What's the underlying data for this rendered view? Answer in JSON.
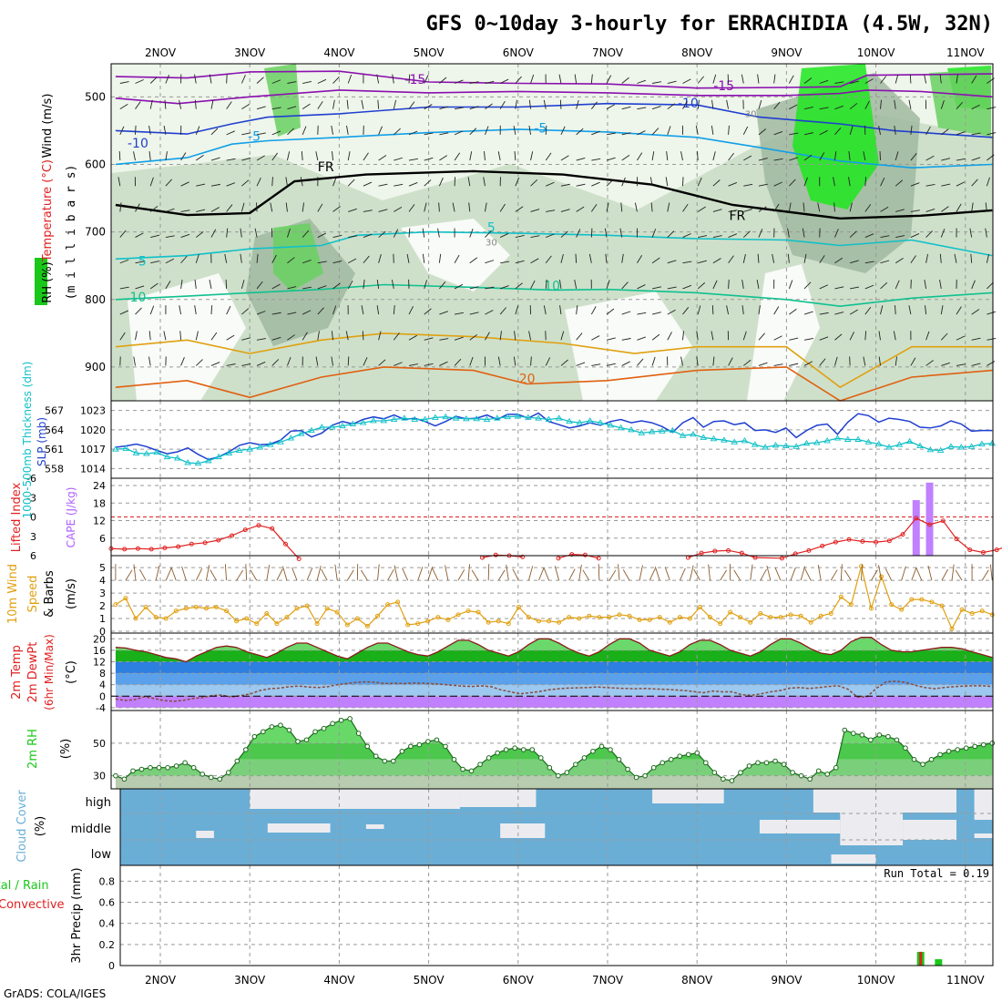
{
  "chart_data": {
    "type": "meteogram",
    "title": "GFS 0~10day 3-hourly for ERRACHIDIA (4.5W, 32N)",
    "footer": "GrADS: COLA/IGES",
    "days": [
      "2NOV",
      "3NOV",
      "4NOV",
      "5NOV",
      "6NOV",
      "7NOV",
      "8NOV",
      "9NOV",
      "10NOV",
      "11NOV"
    ],
    "colors": {
      "purple": "#8a10b0",
      "blue": "#1f3fd0",
      "cyan_blue": "#10a0e8",
      "teal": "#10c0c8",
      "green_teal": "#10c090",
      "orange": "#e0a010",
      "dark_orange": "#e06010",
      "red": "#e02020",
      "rh_green": "#19c819",
      "cloud_blue": "#6aaed6",
      "cloud_white": "#f4f0f8",
      "cape_violet": "#c080ff"
    },
    "upper_air": {
      "ylabel_rh": "RH (%)",
      "ylabel_temp": "Temperature (°C)",
      "ylabel_wind": "Wind (m/s)",
      "ylabel_levels": "(m i l l i b a r s)",
      "levels": [
        500,
        600,
        700,
        800,
        900
      ],
      "isotherm_labels": [
        {
          "text": "-15",
          "day": 4.85,
          "level": 481,
          "color": "purple"
        },
        {
          "text": "-15",
          "day": 8.3,
          "level": 490,
          "color": "purple"
        },
        {
          "text": "-10",
          "day": 1.75,
          "level": 575,
          "color": "blue"
        },
        {
          "text": "-10",
          "day": 7.9,
          "level": 516,
          "color": "blue"
        },
        {
          "text": "-5",
          "day": 3.05,
          "level": 565,
          "color": "cyan_blue"
        },
        {
          "text": "-5",
          "day": 6.25,
          "level": 553,
          "color": "cyan_blue"
        },
        {
          "text": "5",
          "day": 1.8,
          "level": 750,
          "color": "teal"
        },
        {
          "text": "5",
          "day": 5.7,
          "level": 700,
          "color": "teal"
        },
        {
          "text": "10",
          "day": 1.75,
          "level": 803,
          "color": "green_teal"
        },
        {
          "text": "10",
          "day": 6.38,
          "level": 786,
          "color": "green_teal"
        },
        {
          "text": "20",
          "day": 6.1,
          "level": 924,
          "color": "dark_orange"
        },
        {
          "text": "FR",
          "day": 3.85,
          "level": 610,
          "color": "black"
        },
        {
          "text": "FR",
          "day": 8.45,
          "level": 682,
          "color": "black"
        },
        {
          "text": "30",
          "day": 8.6,
          "level": 530,
          "color": "gray"
        },
        {
          "text": "30",
          "day": 5.7,
          "level": 720,
          "color": "gray"
        }
      ]
    },
    "pressure_thickness": {
      "ylabel_thickness": "1000-500mb Thickness (dm)",
      "ylabel_slp": "SLP (mb)",
      "thickness_ticks": [
        558,
        561,
        564,
        567
      ],
      "slp_ticks": [
        1014,
        1017,
        1020,
        1023
      ],
      "slp": [
        1017.3,
        1017.5,
        1017.8,
        1017.4,
        1016.8,
        1016.3,
        1016.6,
        1017.2,
        1016.2,
        1015.4,
        1015.8,
        1016.6,
        1017.6,
        1018.0,
        1017.7,
        1017.8,
        1018.4,
        1019.8,
        1019.9,
        1018.9,
        1019.5,
        1020.7,
        1021.3,
        1020.9,
        1021.6,
        1022.0,
        1021.7,
        1022.3,
        1021.6,
        1021.8,
        1021.3,
        1020.6,
        1021.3,
        1022.1,
        1021.7,
        1021.8,
        1022.3,
        1021.6,
        1022.4,
        1022.4,
        1021.8,
        1022.6,
        1021.3,
        1020.8,
        1020.3,
        1020.6,
        1021.1,
        1020.7,
        1021.3,
        1021.6,
        1021.1,
        1021.4,
        1021.1,
        1020.5,
        1019.6,
        1021.1,
        1021.9,
        1020.4,
        1021.3,
        1021.4,
        1020.8,
        1021.1,
        1019.9,
        1020.0,
        1019.6,
        1020.3,
        1018.8,
        1019.9,
        1020.7,
        1020.9,
        1019.3,
        1021.2,
        1022.5,
        1022.2,
        1021.2,
        1021.8,
        1021.6,
        1021.3,
        1020.4,
        1020.3,
        1020.6,
        1021.4,
        1020.9,
        1019.8,
        1019.9,
        1019.9
      ],
      "thickness": [
        561.0,
        561.1,
        560.4,
        560.3,
        560.5,
        559.8,
        559.6,
        558.9,
        558.8,
        559.2,
        559.8,
        560.4,
        560.8,
        561.0,
        561.3,
        561.7,
        562.1,
        562.7,
        563.4,
        563.9,
        564.4,
        564.4,
        564.6,
        564.9,
        565.1,
        565.4,
        565.4,
        565.6,
        565.8,
        565.6,
        565.6,
        565.9,
        566.0,
        565.8,
        565.7,
        565.7,
        565.6,
        565.8,
        566.0,
        566.1,
        565.9,
        565.8,
        565.6,
        565.8,
        565.3,
        565.1,
        565.4,
        565.1,
        564.7,
        564.3,
        564.0,
        563.5,
        563.7,
        563.8,
        563.9,
        563.1,
        563.3,
        562.8,
        562.6,
        562.4,
        562.1,
        562.3,
        561.7,
        561.3,
        561.6,
        561.5,
        561.4,
        561.9,
        562.0,
        562.3,
        562.7,
        562.5,
        562.5,
        562.1,
        561.8,
        561.3,
        561.7,
        562.2,
        561.5,
        560.9,
        560.8,
        561.4,
        561.3,
        561.4,
        561.8,
        561.9
      ]
    },
    "stability": {
      "ylabel_li": "Lifted Index",
      "ylabel_cape": "CAPE (J/kg)",
      "li_ticks": [
        "-6",
        "-3",
        "0",
        "3",
        "6"
      ],
      "cape_ticks": [
        6,
        12,
        18,
        24
      ],
      "cape_bars": [
        {
          "day": 9.45,
          "value": 19
        },
        {
          "day": 9.6,
          "value": 25
        }
      ],
      "li_points": [
        [
          0.45,
          4.9
        ],
        [
          0.6,
          5.0
        ],
        [
          0.75,
          4.9
        ],
        [
          0.9,
          5.0
        ],
        [
          1.05,
          4.8
        ],
        [
          1.2,
          4.6
        ],
        [
          1.35,
          4.2
        ],
        [
          1.5,
          4.0
        ],
        [
          1.65,
          3.6
        ],
        [
          1.8,
          2.9
        ],
        [
          1.95,
          2.0
        ],
        [
          2.1,
          1.3
        ],
        [
          2.25,
          1.8
        ],
        [
          2.4,
          4.2
        ],
        [
          2.55,
          6.5
        ],
        [
          4.6,
          6.3
        ],
        [
          4.75,
          5.9
        ],
        [
          4.9,
          6.0
        ],
        [
          5.05,
          6.2
        ],
        [
          5.45,
          6.4
        ],
        [
          5.6,
          5.8
        ],
        [
          5.75,
          5.9
        ],
        [
          5.9,
          6.4
        ],
        [
          6.9,
          6.3
        ],
        [
          7.05,
          5.6
        ],
        [
          7.2,
          5.3
        ],
        [
          7.35,
          5.2
        ],
        [
          7.5,
          5.6
        ],
        [
          7.65,
          6.3
        ],
        [
          7.95,
          6.4
        ],
        [
          8.1,
          5.7
        ],
        [
          8.25,
          5.2
        ],
        [
          8.4,
          4.5
        ],
        [
          8.55,
          3.9
        ],
        [
          8.7,
          3.5
        ],
        [
          8.85,
          3.8
        ],
        [
          9.0,
          3.9
        ],
        [
          9.15,
          3.7
        ],
        [
          9.3,
          2.7
        ],
        [
          9.45,
          0.2
        ],
        [
          9.6,
          1.2
        ],
        [
          9.75,
          0.6
        ],
        [
          9.9,
          3.4
        ],
        [
          10.05,
          5.1
        ],
        [
          10.2,
          5.5
        ],
        [
          10.35,
          5.1
        ],
        [
          10.5,
          4.4
        ],
        [
          10.65,
          3.8
        ],
        [
          10.8,
          3.0
        ],
        [
          10.95,
          2.3
        ],
        [
          11.1,
          1.8
        ],
        [
          11.25,
          1.5
        ],
        [
          11.4,
          1.4
        ],
        [
          11.55,
          1.8
        ],
        [
          11.7,
          1.9
        ]
      ]
    },
    "surface_wind": {
      "ylabel_1": "10m Wind",
      "ylabel_2": "Speed",
      "ylabel_3": "& Barbs",
      "ylabel_unit": "(m/s)",
      "y_ticks": [
        0,
        1,
        2,
        3,
        4,
        5
      ],
      "speed": [
        2.1,
        2.6,
        1.0,
        1.9,
        1.1,
        1.0,
        1.6,
        1.8,
        1.9,
        1.8,
        1.9,
        1.6,
        0.8,
        1.0,
        0.6,
        1.4,
        0.6,
        1.1,
        1.8,
        2.0,
        0.6,
        1.8,
        1.5,
        0.5,
        1.0,
        0.4,
        1.2,
        2.1,
        2.3,
        0.5,
        0.6,
        0.8,
        1.1,
        0.9,
        1.3,
        1.6,
        1.5,
        0.7,
        0.8,
        0.6,
        1.9,
        1.1,
        0.8,
        0.8,
        0.7,
        1.1,
        1.0,
        1.2,
        1.1,
        1.1,
        1.3,
        1.2,
        0.9,
        0.9,
        1.1,
        0.7,
        1.1,
        1.0,
        1.9,
        1.1,
        0.6,
        1.5,
        1.1,
        0.7,
        1.4,
        1.1,
        1.1,
        1.3,
        1.2,
        0.7,
        1.2,
        1.4,
        2.7,
        2.1,
        5.1,
        1.8,
        4.3,
        2.1,
        1.7,
        2.5,
        2.5,
        2.3,
        2.0,
        0.2,
        1.7,
        1.4,
        1.6,
        1.3
      ]
    },
    "surface_temp": {
      "ylabel_1": "2m Temp",
      "ylabel_2": "2m DewPt",
      "ylabel_3": "(6hr Min/Max)",
      "ylabel_unit": "(°C)",
      "y_ticks": [
        -4,
        0,
        4,
        8,
        12,
        16,
        20
      ],
      "temp": [
        17,
        16.8,
        16.0,
        15.5,
        14.5,
        13.5,
        13,
        12,
        14,
        15.5,
        17,
        17.5,
        17,
        15.5,
        14.5,
        13.5,
        15,
        17,
        18.5,
        18.5,
        17,
        15.5,
        14,
        13,
        15,
        17,
        18.5,
        18.5,
        17,
        15.5,
        14.5,
        14,
        15.5,
        17.5,
        19.5,
        19.5,
        18,
        16,
        15,
        14,
        15.5,
        18,
        20,
        20,
        18.5,
        16.5,
        15,
        14,
        15.5,
        18,
        20,
        20,
        18.5,
        16,
        15,
        14,
        15.5,
        18,
        19.5,
        19.5,
        18,
        16,
        15,
        14,
        15.5,
        18,
        20,
        20,
        18.5,
        16.5,
        15,
        14.5,
        16,
        19,
        20.5,
        20.5,
        18,
        16,
        15.5,
        15.5,
        16,
        16.5,
        17,
        17,
        16.5,
        15.5,
        14.5,
        13.5
      ],
      "dew": [
        -1.0,
        -1.5,
        -1.2,
        -0.2,
        -0.8,
        -1.5,
        -1.8,
        -1.5,
        -0.8,
        -0.5,
        0.2,
        0.4,
        -0.3,
        0.2,
        0.8,
        2.0,
        2.6,
        2.8,
        3.3,
        3.5,
        3.2,
        3.0,
        3.3,
        4.0,
        4.4,
        4.8,
        5.0,
        4.8,
        4.4,
        4.5,
        4.4,
        4.6,
        4.5,
        4.3,
        4.1,
        3.8,
        3.5,
        3.4,
        3.6,
        3.3,
        2.2,
        1.5,
        0.8,
        1.2,
        1.6,
        2.2,
        2.6,
        2.8,
        2.9,
        3.0,
        3.2,
        3.0,
        2.8,
        2.7,
        2.6,
        2.7,
        2.5,
        2.4,
        2.2,
        2.0,
        1.6,
        1.2,
        1.8,
        1.5,
        1.5,
        0.5,
        0.3,
        0.8,
        1.5,
        2.0,
        2.8,
        3.0,
        2.7,
        3.0,
        3.4,
        3.6,
        2.5,
        -0.3,
        -0.2,
        2.8,
        5.0,
        5.2,
        4.8,
        3.8,
        3.0,
        2.6,
        3.0,
        3.3,
        3.5,
        3.6,
        3.6,
        3.4
      ]
    },
    "surface_rh": {
      "ylabel": "2m RH",
      "ylabel_unit": "(%)",
      "y_ticks": [
        30,
        50
      ],
      "rh": [
        30,
        28,
        33,
        34,
        35,
        35,
        35,
        36,
        38,
        35,
        31,
        29,
        28,
        32,
        39,
        46,
        54,
        57,
        60,
        61,
        58,
        51,
        52,
        57,
        59,
        62,
        64,
        65,
        56,
        48,
        42,
        39,
        39,
        45,
        48,
        49,
        51,
        52,
        48,
        40,
        34,
        33,
        37,
        41,
        44,
        46,
        47,
        46,
        46,
        41,
        35,
        30,
        32,
        37,
        41,
        45,
        48,
        46,
        40,
        34,
        29,
        30,
        35,
        38,
        40,
        42,
        43,
        44,
        38,
        32,
        28,
        27,
        32,
        36,
        38,
        38,
        39,
        37,
        32,
        30,
        28,
        33,
        31,
        35,
        58,
        56,
        55,
        52,
        55,
        54,
        52,
        47,
        40,
        37,
        40,
        43,
        45,
        46,
        47,
        48,
        49,
        50
      ],
      "note": "mostly constant hidden"
    },
    "cloud_cover": {
      "ylabel_1": "Cloud Cover",
      "ylabel_unit": "(%)",
      "labels": [
        "high",
        "middle",
        "low"
      ]
    },
    "precip": {
      "ylabel_1": "Total / Rain",
      "ylabel_2": "Convective",
      "ylabel_3": "3hr Precip (mm)",
      "y_ticks": [
        "0",
        "0.2",
        "0.4",
        "0.6",
        "0.8"
      ],
      "run_total": "Run Total = 0.19",
      "bars": [
        {
          "day": 9.5,
          "total": 0.13,
          "convective": 0.13
        },
        {
          "day": 9.7,
          "total": 0.06,
          "convective": 0
        }
      ]
    }
  }
}
